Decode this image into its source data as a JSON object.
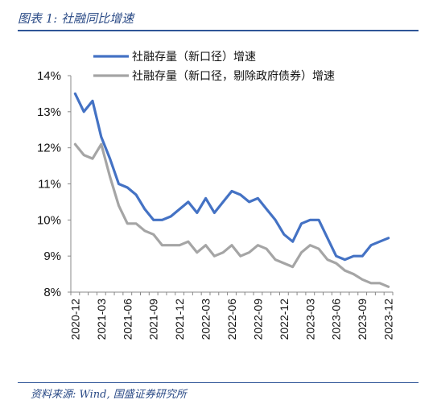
{
  "header": {
    "title": "图表 1:  社融同比增速"
  },
  "footer": {
    "source": "资料来源: Wind, 国盛证券研究所"
  },
  "chart_data": {
    "type": "line",
    "title": "图表 1:  社融同比增速",
    "xlabel": "",
    "ylabel": "",
    "ylim": [
      8,
      14
    ],
    "y_ticks": [
      "8%",
      "9%",
      "10%",
      "11%",
      "12%",
      "13%",
      "14%"
    ],
    "x_tick_labels": [
      "2020-12",
      "2021-03",
      "2021-06",
      "2021-09",
      "2021-12",
      "2022-03",
      "2022-06",
      "2022-09",
      "2022-12",
      "2023-03",
      "2023-06",
      "2023-09",
      "2023-12"
    ],
    "grid": false,
    "legend_placement": "top",
    "x": [
      "2020-12",
      "2021-01",
      "2021-02",
      "2021-03",
      "2021-04",
      "2021-05",
      "2021-06",
      "2021-07",
      "2021-08",
      "2021-09",
      "2021-10",
      "2021-11",
      "2021-12",
      "2022-01",
      "2022-02",
      "2022-03",
      "2022-04",
      "2022-05",
      "2022-06",
      "2022-07",
      "2022-08",
      "2022-09",
      "2022-10",
      "2022-11",
      "2022-12",
      "2023-01",
      "2023-02",
      "2023-03",
      "2023-04",
      "2023-05",
      "2023-06",
      "2023-07",
      "2023-08",
      "2023-09",
      "2023-10",
      "2023-11",
      "2023-12"
    ],
    "series": [
      {
        "name": "社融存量（新口径）增速",
        "color": "#4472c4",
        "values": [
          13.5,
          13.0,
          13.3,
          12.3,
          11.7,
          11.0,
          10.9,
          10.7,
          10.3,
          10.0,
          10.0,
          10.1,
          10.3,
          10.5,
          10.2,
          10.6,
          10.2,
          10.5,
          10.8,
          10.7,
          10.5,
          10.6,
          10.3,
          10.0,
          9.6,
          9.4,
          9.9,
          10.0,
          10.0,
          9.5,
          9.0,
          8.9,
          9.0,
          9.0,
          9.3,
          9.4,
          9.5
        ]
      },
      {
        "name": "社融存量（新口径，剔除政府债券）增速",
        "color": "#a5a5a5",
        "values": [
          12.1,
          11.8,
          11.7,
          12.1,
          11.2,
          10.4,
          9.9,
          9.9,
          9.7,
          9.6,
          9.3,
          9.3,
          9.3,
          9.4,
          9.1,
          9.3,
          9.0,
          9.1,
          9.3,
          9.0,
          9.1,
          9.3,
          9.2,
          8.9,
          8.8,
          8.7,
          9.1,
          9.3,
          9.2,
          8.9,
          8.8,
          8.6,
          8.5,
          8.35,
          8.25,
          8.25,
          8.15
        ]
      }
    ]
  }
}
